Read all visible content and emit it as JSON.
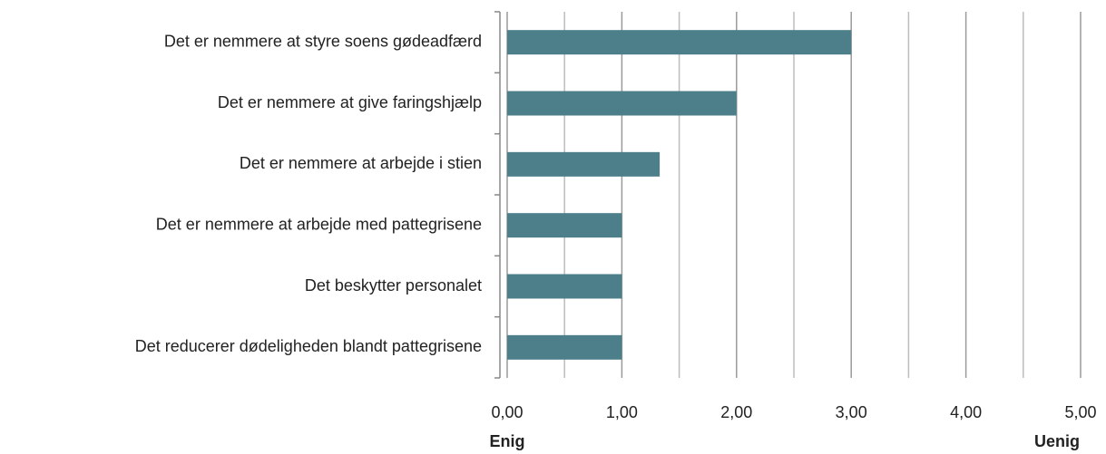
{
  "chart_data": {
    "type": "barh",
    "categories": [
      "Det er nemmere at styre soens gødeadfærd",
      "Det er nemmere at give faringshjælp",
      "Det er nemmere at arbejde i stien",
      "Det er nemmere at arbejde med pattegrisene",
      "Det beskytter personalet",
      "Det reducerer dødeligheden blandt pattegrisene"
    ],
    "values": [
      3.0,
      2.0,
      1.33,
      1.0,
      1.0,
      1.0
    ],
    "color": "#4d7f8b",
    "xlim": [
      0,
      5
    ],
    "xticks": [
      {
        "value": 0,
        "label": "0,00"
      },
      {
        "value": 1,
        "label": "1,00"
      },
      {
        "value": 2,
        "label": "2,00"
      },
      {
        "value": 3,
        "label": "3,00"
      },
      {
        "value": 4,
        "label": "4,00"
      },
      {
        "value": 5,
        "label": "5,00"
      }
    ],
    "minor_xticks": [
      0.5,
      1.5,
      2.5,
      3.5,
      4.5
    ],
    "grid": true,
    "axis_end_labels": {
      "low": "Enig",
      "high": "Uenig"
    }
  }
}
